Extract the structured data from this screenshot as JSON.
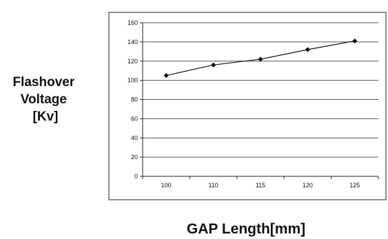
{
  "chart_data": {
    "type": "line",
    "categories": [
      "100",
      "110",
      "115",
      "120",
      "125"
    ],
    "series": [
      {
        "values": [
          105,
          116,
          122,
          132,
          141
        ],
        "color": "#111111",
        "marker": "diamond"
      }
    ],
    "ylabel_lines": [
      "Flashover",
      "Voltage",
      "[Kv]"
    ],
    "xlabel": "GAP Length[mm]",
    "ylim": [
      0,
      160
    ],
    "yticks": [
      "0",
      "20",
      "40",
      "60",
      "80",
      "100",
      "120",
      "140",
      "160"
    ],
    "grid": true
  }
}
